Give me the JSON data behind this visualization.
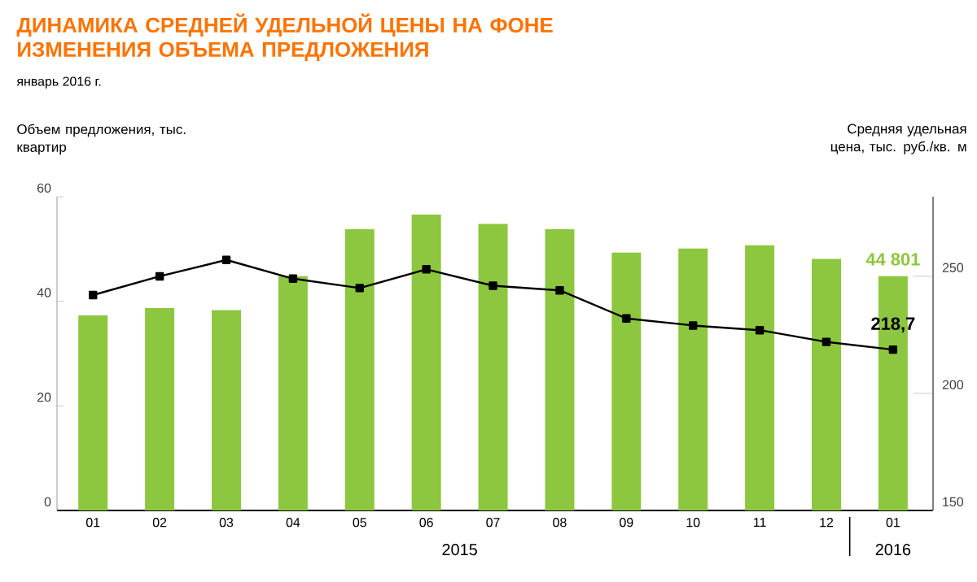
{
  "chart_data": {
    "type": "bar",
    "title": "ДИНАМИКА СРЕДНЕЙ УДЕЛЬНОЙ ЦЕНЫ НА ФОНЕ ИЗМЕНЕНИЯ ОБЪЕМА ПРЕДЛОЖЕНИЯ",
    "subtitle": "январь 2016 г.",
    "ylabel": "Объем предложения, тыс. квартир",
    "y2label": "Средняя удельная цена, тыс. руб./кв. м",
    "categories": [
      "01",
      "02",
      "03",
      "04",
      "05",
      "06",
      "07",
      "08",
      "09",
      "10",
      "11",
      "12",
      "01"
    ],
    "series": [
      {
        "color": "#8dc63f",
        "values": [
          37.3,
          38.7,
          38.3,
          44.8,
          53.8,
          56.6,
          54.8,
          53.8,
          49.3,
          50.1,
          50.7,
          48.1,
          44.8
        ]
      },
      {
        "type": "line",
        "axis": "y2",
        "color": "#000000",
        "values": [
          242,
          250,
          257,
          249,
          245,
          253,
          246,
          244,
          232,
          229,
          227,
          222,
          218.7
        ],
        "value_labels": [
          null,
          null,
          null,
          null,
          null,
          null,
          null,
          null,
          null,
          null,
          null,
          null,
          "218,7"
        ]
      }
    ],
    "ylim": [
      0,
      60
    ],
    "yticks": [
      0,
      20,
      40,
      60
    ],
    "y2lim": [
      150,
      284
    ],
    "y2ticks": [
      150,
      200,
      250
    ],
    "annotations": [
      "2015",
      "2016",
      "44 801"
    ],
    "grid": false,
    "marker": "square",
    "line_style": "solid"
  }
}
